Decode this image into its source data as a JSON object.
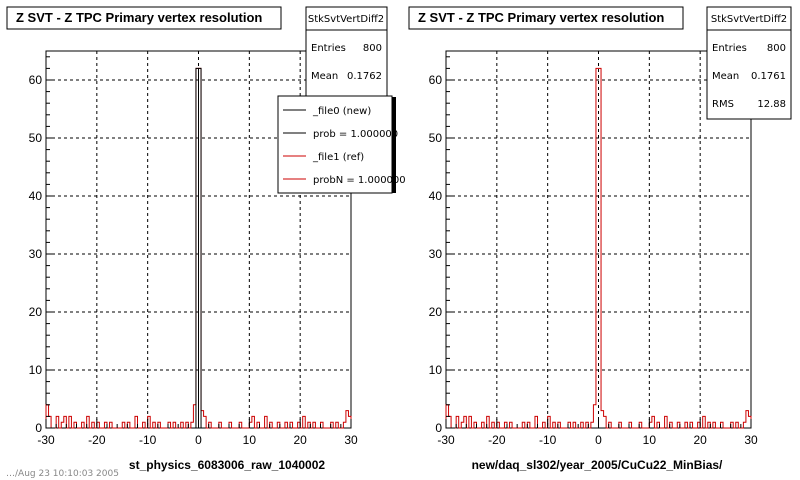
{
  "footer_text": "…/Aug 23 10:10:03 2005",
  "colors": {
    "new": "#000000",
    "ref": "#cc0000",
    "grid": "#000000"
  },
  "panels": [
    {
      "title": "Z SVT - Z TPC Primary vertex resolution",
      "xtitle": "st_physics_6083006_raw_1040002",
      "stats": {
        "name": "StkSvtVertDiff2",
        "rows": [
          {
            "label": "Entries",
            "value": "800"
          },
          {
            "label": "Mean",
            "value": "0.1762"
          }
        ]
      },
      "legend": {
        "entries": [
          {
            "label": "_file0 (new)",
            "color": "#000000"
          },
          {
            "label": "prob = 1.000000",
            "color": "#000000"
          },
          {
            "label": "_file1 (ref)",
            "color": "#cc0000"
          },
          {
            "label": "probN = 1.000000",
            "color": "#cc0000"
          }
        ]
      }
    },
    {
      "title": "Z SVT - Z TPC Primary vertex resolution",
      "xtitle": "new/daq_sl302/year_2005/CuCu22_MinBias/",
      "stats": {
        "name": "StkSvtVertDiff2",
        "rows": [
          {
            "label": "Entries",
            "value": "800"
          },
          {
            "label": "Mean",
            "value": "0.1761"
          },
          {
            "label": "RMS",
            "value": "12.88"
          }
        ]
      },
      "legend": null
    }
  ],
  "chart_data": [
    {
      "type": "histogram",
      "title": "Z SVT - Z TPC Primary vertex resolution",
      "xlabel": "st_physics_6083006_raw_1040002",
      "ylabel": "",
      "xlim": [
        -30,
        30
      ],
      "ylim": [
        0,
        65
      ],
      "xticks": [
        -30,
        -20,
        -10,
        0,
        10,
        20,
        30
      ],
      "yticks": [
        0,
        10,
        20,
        30,
        40,
        50,
        60
      ],
      "grid": true,
      "legend_position": "top-right",
      "bin_width": 0.5,
      "bin_range": [
        -30,
        30
      ],
      "series": [
        {
          "name": "_file1 (ref)",
          "color": "#cc0000",
          "bins": [
            [
              -30,
              4
            ],
            [
              -29.5,
              2
            ],
            [
              -28,
              2
            ],
            [
              -27,
              1
            ],
            [
              -26.5,
              2
            ],
            [
              -25.5,
              2
            ],
            [
              -24.5,
              1
            ],
            [
              -23,
              1
            ],
            [
              -22,
              2
            ],
            [
              -21,
              1
            ],
            [
              -20,
              1
            ],
            [
              -18.5,
              1
            ],
            [
              -17.5,
              1
            ],
            [
              -15,
              1
            ],
            [
              -14,
              1
            ],
            [
              -12.5,
              2
            ],
            [
              -11,
              1
            ],
            [
              -10,
              2
            ],
            [
              -9,
              1
            ],
            [
              -8,
              1
            ],
            [
              -6,
              1
            ],
            [
              -5,
              1
            ],
            [
              -3.5,
              1
            ],
            [
              -2.5,
              1
            ],
            [
              -1.5,
              1
            ],
            [
              -1,
              4
            ],
            [
              -0.5,
              62
            ],
            [
              0,
              62
            ],
            [
              0.5,
              3
            ],
            [
              1,
              2
            ],
            [
              2,
              1
            ],
            [
              4,
              1
            ],
            [
              6,
              1
            ],
            [
              8,
              1
            ],
            [
              10,
              1
            ],
            [
              10.5,
              2
            ],
            [
              11.5,
              1
            ],
            [
              13,
              2
            ],
            [
              14,
              1
            ],
            [
              15.5,
              1
            ],
            [
              17,
              1
            ],
            [
              18,
              1
            ],
            [
              19.5,
              1
            ],
            [
              20.5,
              2
            ],
            [
              21.5,
              1
            ],
            [
              22.5,
              1
            ],
            [
              24,
              1
            ],
            [
              26,
              1
            ],
            [
              27,
              1
            ],
            [
              28.5,
              1
            ],
            [
              29,
              3
            ],
            [
              29.5,
              2
            ]
          ]
        },
        {
          "name": "_file0 (new)",
          "color": "#000000",
          "bins": [
            [
              -0.5,
              62
            ],
            [
              0,
              62
            ]
          ]
        }
      ]
    },
    {
      "type": "histogram",
      "title": "Z SVT - Z TPC Primary vertex resolution",
      "xlabel": "new/daq_sl302/year_2005/CuCu22_MinBias/",
      "ylabel": "",
      "xlim": [
        -30,
        30
      ],
      "ylim": [
        0,
        65
      ],
      "xticks": [
        -30,
        -20,
        -10,
        0,
        10,
        20,
        30
      ],
      "yticks": [
        0,
        10,
        20,
        30,
        40,
        50,
        60
      ],
      "grid": true,
      "bin_width": 0.5,
      "bin_range": [
        -30,
        30
      ],
      "series": [
        {
          "name": "StkSvtVertDiff2",
          "color": "#cc0000",
          "bins": [
            [
              -30,
              4
            ],
            [
              -29.5,
              2
            ],
            [
              -28,
              2
            ],
            [
              -27,
              1
            ],
            [
              -26.5,
              2
            ],
            [
              -25.5,
              2
            ],
            [
              -24.5,
              1
            ],
            [
              -23,
              1
            ],
            [
              -22,
              2
            ],
            [
              -21,
              1
            ],
            [
              -20,
              1
            ],
            [
              -18.5,
              1
            ],
            [
              -17.5,
              1
            ],
            [
              -15,
              1
            ],
            [
              -14,
              1
            ],
            [
              -12.5,
              2
            ],
            [
              -11,
              1
            ],
            [
              -10,
              2
            ],
            [
              -9,
              1
            ],
            [
              -8,
              1
            ],
            [
              -6,
              1
            ],
            [
              -5,
              1
            ],
            [
              -3.5,
              1
            ],
            [
              -2.5,
              1
            ],
            [
              -1.5,
              1
            ],
            [
              -1,
              4
            ],
            [
              -0.5,
              62
            ],
            [
              0,
              62
            ],
            [
              0.5,
              3
            ],
            [
              1,
              2
            ],
            [
              2,
              1
            ],
            [
              4,
              1
            ],
            [
              6,
              1
            ],
            [
              8,
              1
            ],
            [
              10,
              1
            ],
            [
              10.5,
              2
            ],
            [
              11.5,
              1
            ],
            [
              13,
              2
            ],
            [
              14,
              1
            ],
            [
              15.5,
              1
            ],
            [
              17,
              1
            ],
            [
              18,
              1
            ],
            [
              19.5,
              1
            ],
            [
              20.5,
              2
            ],
            [
              21.5,
              1
            ],
            [
              22.5,
              1
            ],
            [
              24,
              1
            ],
            [
              26,
              1
            ],
            [
              27,
              1
            ],
            [
              28.5,
              1
            ],
            [
              29,
              3
            ],
            [
              29.5,
              2
            ]
          ]
        }
      ]
    }
  ]
}
